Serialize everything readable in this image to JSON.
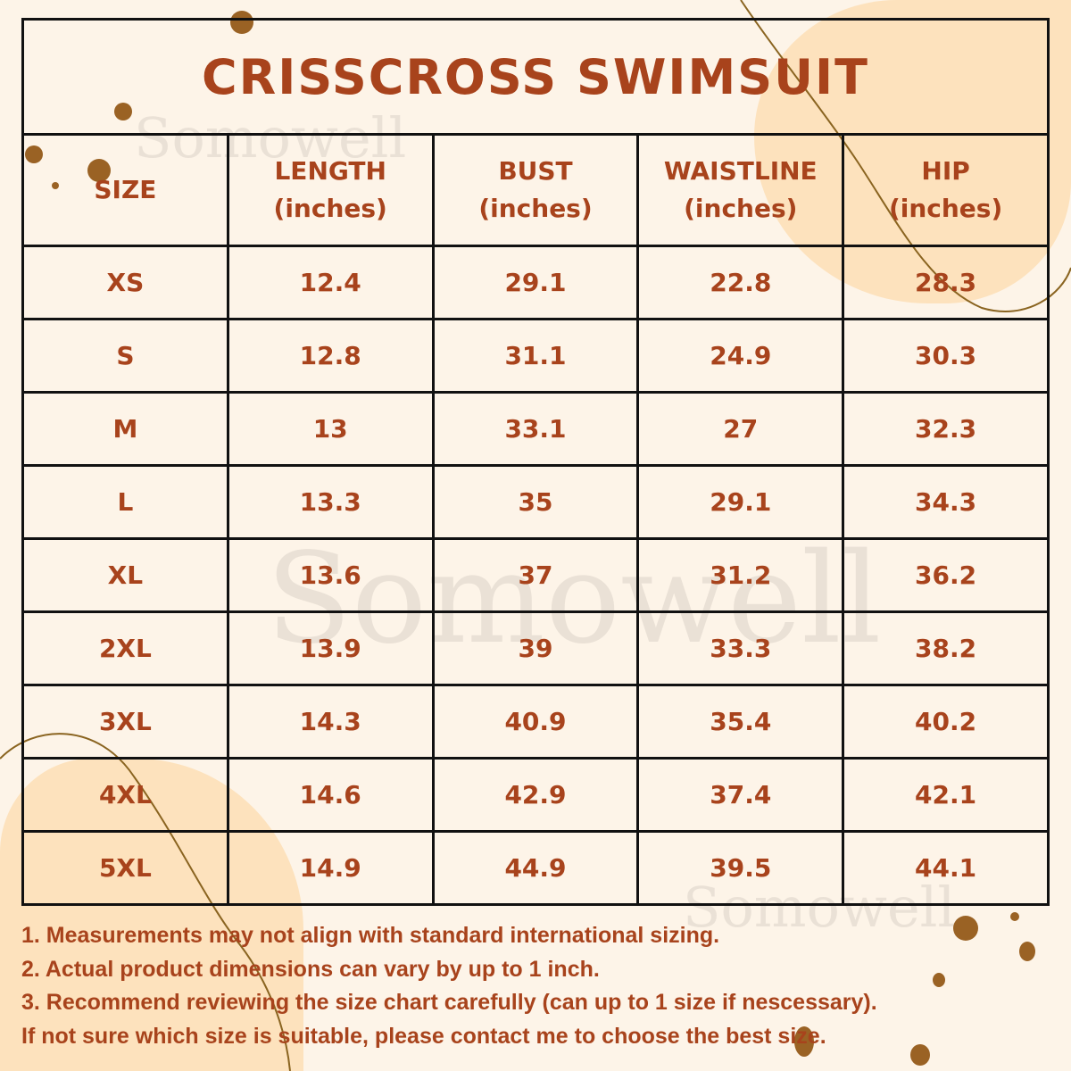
{
  "title": "CRISSCROSS SWIMSUIT",
  "watermark": "Somowell",
  "colors": {
    "text": "#a8431c",
    "background": "#fdf4e8",
    "accent_blob": "#fde2bd",
    "dots": "#9a6224",
    "border": "#111111"
  },
  "table": {
    "headers": [
      {
        "label": "SIZE",
        "unit": ""
      },
      {
        "label": "LENGTH",
        "unit": "(inches)"
      },
      {
        "label": "BUST",
        "unit": "(inches)"
      },
      {
        "label": "WAISTLINE",
        "unit": "(inches)"
      },
      {
        "label": "HIP",
        "unit": "(inches)"
      }
    ],
    "rows": [
      [
        "XS",
        "12.4",
        "29.1",
        "22.8",
        "28.3"
      ],
      [
        "S",
        "12.8",
        "31.1",
        "24.9",
        "30.3"
      ],
      [
        "M",
        "13",
        "33.1",
        "27",
        "32.3"
      ],
      [
        "L",
        "13.3",
        "35",
        "29.1",
        "34.3"
      ],
      [
        "XL",
        "13.6",
        "37",
        "31.2",
        "36.2"
      ],
      [
        "2XL",
        "13.9",
        "39",
        "33.3",
        "38.2"
      ],
      [
        "3XL",
        "14.3",
        "40.9",
        "35.4",
        "40.2"
      ],
      [
        "4XL",
        "14.6",
        "42.9",
        "37.4",
        "42.1"
      ],
      [
        "5XL",
        "14.9",
        "44.9",
        "39.5",
        "44.1"
      ]
    ]
  },
  "notes": [
    "1. Measurements may not align with standard international sizing.",
    "2. Actual product dimensions can vary by up to 1 inch.",
    "3. Recommend reviewing the size chart carefully (can up to 1 size if nescessary).",
    "If not sure which size is suitable, please contact me to choose the best size."
  ]
}
